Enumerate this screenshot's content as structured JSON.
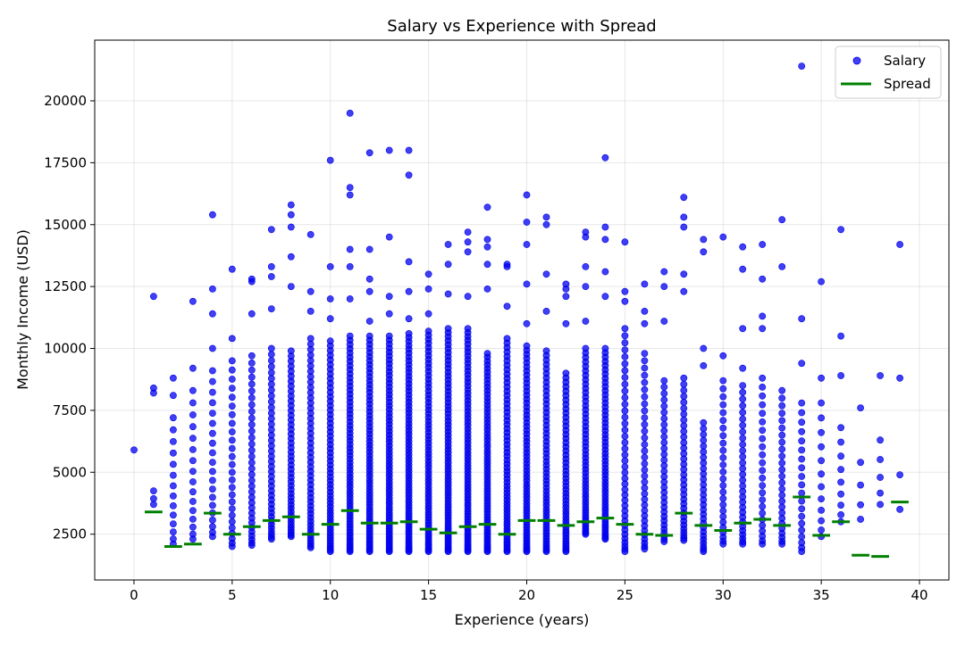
{
  "chart_data": {
    "type": "scatter",
    "title": "Salary vs Experience with Spread",
    "xlabel": "Experience (years)",
    "ylabel": "Monthly Income (USD)",
    "xlim": [
      -2,
      41.5
    ],
    "ylim": [
      650,
      22450
    ],
    "xticks": [
      "0",
      "5",
      "10",
      "15",
      "20",
      "25",
      "30",
      "35",
      "40"
    ],
    "yticks": [
      "2500",
      "5000",
      "7500",
      "10000",
      "12500",
      "15000",
      "17500",
      "20000"
    ],
    "grid": true,
    "legend_position": "top-right",
    "colors": {
      "salary": "#0000ee",
      "spread": "#008000"
    },
    "series": [
      {
        "name": "Salary",
        "type": "scatter",
        "dense": [
          {
            "x": 1,
            "lo": 3700,
            "hi": 4250,
            "n": 3
          },
          {
            "x": 2,
            "lo": 2100,
            "hi": 7200,
            "n": 14
          },
          {
            "x": 3,
            "lo": 2300,
            "hi": 8300,
            "n": 16
          },
          {
            "x": 4,
            "lo": 2400,
            "hi": 9100,
            "n": 20
          },
          {
            "x": 5,
            "lo": 2000,
            "hi": 9500,
            "n": 26
          },
          {
            "x": 6,
            "lo": 2050,
            "hi": 9700,
            "n": 34
          },
          {
            "x": 7,
            "lo": 2300,
            "hi": 10000,
            "n": 40
          },
          {
            "x": 8,
            "lo": 2400,
            "hi": 9900,
            "n": 46
          },
          {
            "x": 9,
            "lo": 1950,
            "hi": 10400,
            "n": 48
          },
          {
            "x": 10,
            "lo": 1800,
            "hi": 10300,
            "n": 56
          },
          {
            "x": 11,
            "lo": 1800,
            "hi": 10500,
            "n": 64
          },
          {
            "x": 12,
            "lo": 1800,
            "hi": 10500,
            "n": 66
          },
          {
            "x": 13,
            "lo": 1800,
            "hi": 10500,
            "n": 68
          },
          {
            "x": 14,
            "lo": 1800,
            "hi": 10600,
            "n": 70
          },
          {
            "x": 15,
            "lo": 1800,
            "hi": 10700,
            "n": 68
          },
          {
            "x": 16,
            "lo": 1800,
            "hi": 10800,
            "n": 70
          },
          {
            "x": 17,
            "lo": 1800,
            "hi": 10800,
            "n": 72
          },
          {
            "x": 18,
            "lo": 1800,
            "hi": 9800,
            "n": 66
          },
          {
            "x": 19,
            "lo": 1800,
            "hi": 10400,
            "n": 60
          },
          {
            "x": 20,
            "lo": 1800,
            "hi": 10100,
            "n": 62
          },
          {
            "x": 21,
            "lo": 1800,
            "hi": 9900,
            "n": 56
          },
          {
            "x": 22,
            "lo": 1800,
            "hi": 9000,
            "n": 50
          },
          {
            "x": 23,
            "lo": 2500,
            "hi": 10000,
            "n": 52
          },
          {
            "x": 24,
            "lo": 2300,
            "hi": 10000,
            "n": 56
          },
          {
            "x": 25,
            "lo": 1800,
            "hi": 10800,
            "n": 40
          },
          {
            "x": 26,
            "lo": 1900,
            "hi": 9800,
            "n": 34
          },
          {
            "x": 27,
            "lo": 2200,
            "hi": 8700,
            "n": 32
          },
          {
            "x": 28,
            "lo": 2250,
            "hi": 8800,
            "n": 34
          },
          {
            "x": 29,
            "lo": 1800,
            "hi": 7000,
            "n": 28
          },
          {
            "x": 30,
            "lo": 2100,
            "hi": 8700,
            "n": 26
          },
          {
            "x": 31,
            "lo": 2100,
            "hi": 8500,
            "n": 30
          },
          {
            "x": 32,
            "lo": 2100,
            "hi": 8800,
            "n": 24
          },
          {
            "x": 33,
            "lo": 2100,
            "hi": 8300,
            "n": 26
          },
          {
            "x": 34,
            "lo": 1800,
            "hi": 7800,
            "n": 20
          },
          {
            "x": 35,
            "lo": 2400,
            "hi": 7800,
            "n": 12
          },
          {
            "x": 36,
            "lo": 3000,
            "hi": 6800,
            "n": 9
          },
          {
            "x": 37,
            "lo": 3100,
            "hi": 5400,
            "n": 4
          },
          {
            "x": 38,
            "lo": 3700,
            "hi": 6300,
            "n": 5
          },
          {
            "x": 39,
            "lo": 3500,
            "hi": 4900,
            "n": 2
          }
        ],
        "points": [
          [
            0,
            5900
          ],
          [
            1,
            12100
          ],
          [
            1,
            8400
          ],
          [
            1,
            8200
          ],
          [
            2,
            8800
          ],
          [
            2,
            8100
          ],
          [
            3,
            11900
          ],
          [
            3,
            9200
          ],
          [
            4,
            15400
          ],
          [
            4,
            12400
          ],
          [
            4,
            11400
          ],
          [
            4,
            10000
          ],
          [
            5,
            13200
          ],
          [
            5,
            10400
          ],
          [
            6,
            12800
          ],
          [
            6,
            12700
          ],
          [
            6,
            11400
          ],
          [
            7,
            14800
          ],
          [
            7,
            13300
          ],
          [
            7,
            12900
          ],
          [
            7,
            11600
          ],
          [
            8,
            15800
          ],
          [
            8,
            15400
          ],
          [
            8,
            14900
          ],
          [
            8,
            13700
          ],
          [
            8,
            12500
          ],
          [
            9,
            14600
          ],
          [
            9,
            12300
          ],
          [
            9,
            11500
          ],
          [
            10,
            17600
          ],
          [
            10,
            13300
          ],
          [
            10,
            12000
          ],
          [
            10,
            11200
          ],
          [
            11,
            19500
          ],
          [
            11,
            16500
          ],
          [
            11,
            16200
          ],
          [
            11,
            14000
          ],
          [
            11,
            13300
          ],
          [
            11,
            12000
          ],
          [
            12,
            17900
          ],
          [
            12,
            14000
          ],
          [
            12,
            12800
          ],
          [
            12,
            12300
          ],
          [
            12,
            11100
          ],
          [
            13,
            18000
          ],
          [
            13,
            14500
          ],
          [
            13,
            12100
          ],
          [
            13,
            11400
          ],
          [
            14,
            18000
          ],
          [
            14,
            17000
          ],
          [
            14,
            13500
          ],
          [
            14,
            12300
          ],
          [
            14,
            11200
          ],
          [
            15,
            13000
          ],
          [
            15,
            12400
          ],
          [
            15,
            11400
          ],
          [
            16,
            14200
          ],
          [
            16,
            13400
          ],
          [
            16,
            12200
          ],
          [
            17,
            14700
          ],
          [
            17,
            14300
          ],
          [
            17,
            13900
          ],
          [
            17,
            12100
          ],
          [
            18,
            15700
          ],
          [
            18,
            14400
          ],
          [
            18,
            14100
          ],
          [
            18,
            13400
          ],
          [
            18,
            12400
          ],
          [
            19,
            13400
          ],
          [
            19,
            13300
          ],
          [
            19,
            11700
          ],
          [
            20,
            16200
          ],
          [
            20,
            15100
          ],
          [
            20,
            14200
          ],
          [
            20,
            12600
          ],
          [
            20,
            11000
          ],
          [
            21,
            15300
          ],
          [
            21,
            15000
          ],
          [
            21,
            13000
          ],
          [
            21,
            11500
          ],
          [
            22,
            12600
          ],
          [
            22,
            12400
          ],
          [
            22,
            12100
          ],
          [
            22,
            11000
          ],
          [
            23,
            14700
          ],
          [
            23,
            14500
          ],
          [
            23,
            13300
          ],
          [
            23,
            12500
          ],
          [
            23,
            11100
          ],
          [
            24,
            17700
          ],
          [
            24,
            14900
          ],
          [
            24,
            14400
          ],
          [
            24,
            13100
          ],
          [
            24,
            12100
          ],
          [
            25,
            14300
          ],
          [
            25,
            12300
          ],
          [
            25,
            11900
          ],
          [
            26,
            12600
          ],
          [
            26,
            11500
          ],
          [
            26,
            11000
          ],
          [
            27,
            13100
          ],
          [
            27,
            12500
          ],
          [
            27,
            11100
          ],
          [
            28,
            16100
          ],
          [
            28,
            15300
          ],
          [
            28,
            14900
          ],
          [
            28,
            13000
          ],
          [
            28,
            12300
          ],
          [
            29,
            14400
          ],
          [
            29,
            13900
          ],
          [
            29,
            10000
          ],
          [
            29,
            9300
          ],
          [
            30,
            14500
          ],
          [
            30,
            9700
          ],
          [
            31,
            14100
          ],
          [
            31,
            13200
          ],
          [
            31,
            10800
          ],
          [
            31,
            9200
          ],
          [
            32,
            14200
          ],
          [
            32,
            12800
          ],
          [
            32,
            11300
          ],
          [
            32,
            10800
          ],
          [
            33,
            15200
          ],
          [
            33,
            13300
          ],
          [
            34,
            21400
          ],
          [
            34,
            11200
          ],
          [
            34,
            9400
          ],
          [
            35,
            12700
          ],
          [
            35,
            8800
          ],
          [
            36,
            14800
          ],
          [
            36,
            10500
          ],
          [
            36,
            8900
          ],
          [
            37,
            7600
          ],
          [
            38,
            8900
          ],
          [
            39,
            14200
          ],
          [
            39,
            8800
          ]
        ]
      },
      {
        "name": "Spread",
        "type": "segment",
        "x": [
          1,
          2,
          3,
          4,
          5,
          6,
          7,
          8,
          9,
          10,
          11,
          12,
          13,
          14,
          15,
          16,
          17,
          18,
          19,
          20,
          21,
          22,
          23,
          24,
          25,
          26,
          27,
          28,
          29,
          30,
          31,
          32,
          33,
          34,
          35,
          36,
          37,
          38,
          39
        ],
        "values": [
          3400,
          2000,
          2100,
          3350,
          2500,
          2800,
          3050,
          3200,
          2500,
          2900,
          3450,
          2950,
          2950,
          3000,
          2700,
          2550,
          2800,
          2900,
          2500,
          3050,
          3050,
          2850,
          3000,
          3150,
          2900,
          2500,
          2450,
          3350,
          2850,
          2650,
          2950,
          3100,
          2850,
          4000,
          2450,
          3000,
          1650,
          1600,
          3800
        ]
      }
    ]
  }
}
